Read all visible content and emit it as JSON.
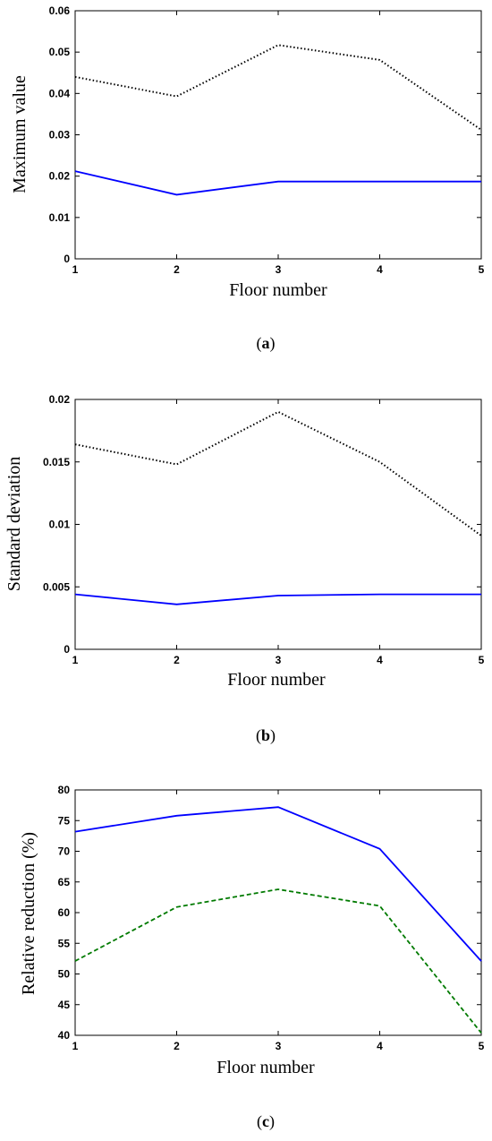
{
  "chart_data": [
    {
      "type": "line",
      "caption": "a",
      "xlabel": "Floor number",
      "ylabel": "Maximum value",
      "x": [
        1,
        2,
        3,
        4,
        5
      ],
      "xlim": [
        1,
        5
      ],
      "ylim": [
        0,
        0.06
      ],
      "xticks": [
        "1",
        "2",
        "3",
        "4",
        "5"
      ],
      "yticks": [
        "0",
        "0.01",
        "0.02",
        "0.03",
        "0.04",
        "0.05",
        "0.06"
      ],
      "series": [
        {
          "values": [
            0.044,
            0.0393,
            0.0517,
            0.0481,
            0.0312
          ],
          "color": "#000000",
          "style": "dotted"
        },
        {
          "values": [
            0.0212,
            0.0155,
            0.0187,
            0.0187,
            0.0187
          ],
          "color": "#0000ff",
          "style": "solid"
        }
      ]
    },
    {
      "type": "line",
      "caption": "b",
      "xlabel": "Floor number",
      "ylabel": "Standard deviation",
      "x": [
        1,
        2,
        3,
        4,
        5
      ],
      "xlim": [
        1,
        5
      ],
      "ylim": [
        0,
        0.02
      ],
      "xticks": [
        "1",
        "2",
        "3",
        "4",
        "5"
      ],
      "yticks": [
        "0",
        "0.005",
        "0.01",
        "0.015",
        "0.02"
      ],
      "series": [
        {
          "values": [
            0.0164,
            0.0148,
            0.019,
            0.015,
            0.0091
          ],
          "color": "#000000",
          "style": "dotted"
        },
        {
          "values": [
            0.0044,
            0.0036,
            0.0043,
            0.0044,
            0.0044
          ],
          "color": "#0000ff",
          "style": "solid"
        }
      ]
    },
    {
      "type": "line",
      "caption": "c",
      "xlabel": "Floor number",
      "ylabel": "Relative reduction (%)",
      "x": [
        1,
        2,
        3,
        4,
        5
      ],
      "xlim": [
        1,
        5
      ],
      "ylim": [
        40,
        80
      ],
      "xticks": [
        "1",
        "2",
        "3",
        "4",
        "5"
      ],
      "yticks": [
        "40",
        "45",
        "50",
        "55",
        "60",
        "65",
        "70",
        "75",
        "80"
      ],
      "series": [
        {
          "values": [
            73.2,
            75.8,
            77.2,
            70.4,
            52.1
          ],
          "color": "#0000ff",
          "style": "solid"
        },
        {
          "values": [
            52.1,
            60.9,
            63.8,
            61.1,
            40.4
          ],
          "color": "#007a00",
          "style": "dashed"
        }
      ]
    }
  ]
}
